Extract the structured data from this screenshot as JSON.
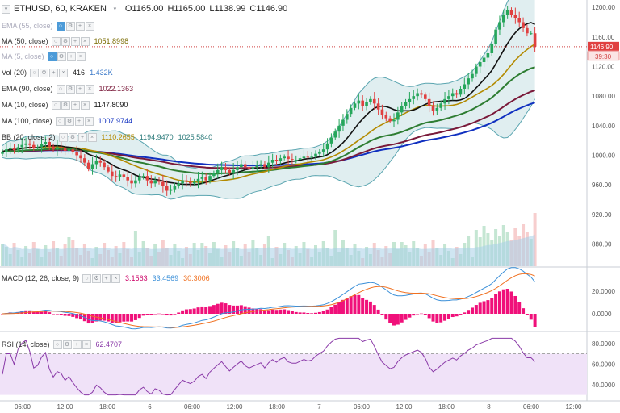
{
  "header": {
    "symbol": "ETHUSD, 60, KRAKEN",
    "open": "O1165.00",
    "high": "H1165.00",
    "low": "L1138.99",
    "close": "C1146.90"
  },
  "indicators": [
    {
      "name": "EMA (55, close)",
      "faded": true,
      "values": []
    },
    {
      "name": "MA (50, close)",
      "faded": false,
      "values": [
        {
          "text": "1051.8998",
          "color": "#7a6b00"
        }
      ]
    },
    {
      "name": "MA (5, close)",
      "faded": true,
      "values": []
    },
    {
      "name": "Vol (20)",
      "faded": false,
      "values": [
        {
          "text": "416",
          "color": "#222222"
        },
        {
          "text": "1.432K",
          "color": "#3a78c8"
        }
      ]
    },
    {
      "name": "EMA (90, close)",
      "faded": false,
      "values": [
        {
          "text": "1022.1363",
          "color": "#7a1a3a"
        }
      ]
    },
    {
      "name": "MA (10, close)",
      "faded": false,
      "values": [
        {
          "text": "1147.8090",
          "color": "#111111"
        }
      ]
    },
    {
      "name": "MA (100, close)",
      "faded": false,
      "values": [
        {
          "text": "1007.9744",
          "color": "#1030c0"
        }
      ]
    },
    {
      "name": "BB (20, close, 2)",
      "faded": false,
      "values": [
        {
          "text": "1110.2655",
          "color": "#b38a00"
        },
        {
          "text": "1194.9470",
          "color": "#2a7a7a"
        },
        {
          "text": "1025.5840",
          "color": "#2a7a7a"
        }
      ]
    }
  ],
  "price_axis": {
    "ticks": [
      "1200.00",
      "1160.00",
      "1120.00",
      "1080.00",
      "1040.00",
      "1000.00",
      "960.00",
      "920.00",
      "880.00"
    ],
    "last_price_label": "1146.90",
    "countdown_label": "39:30"
  },
  "macd_panel": {
    "name": "MACD (12, 26, close, 9)",
    "values": [
      {
        "text": "3.1563",
        "color": "#cc0066"
      },
      {
        "text": "33.4569",
        "color": "#3a8fd8"
      },
      {
        "text": "30.3006",
        "color": "#f07020"
      }
    ],
    "ticks": [
      "20.0000",
      "0.0000"
    ]
  },
  "rsi_panel": {
    "name": "RSI (14, close)",
    "values": [
      {
        "text": "62.4707",
        "color": "#8a3aa8"
      }
    ],
    "ticks": [
      "80.0000",
      "60.0000",
      "40.0000"
    ]
  },
  "time_axis": [
    "06:00",
    "12:00",
    "18:00",
    "6",
    "06:00",
    "12:00",
    "18:00",
    "7",
    "06:00",
    "12:00",
    "18:00",
    "8",
    "06:00",
    "12:00"
  ],
  "colors": {
    "up": "#26a65b",
    "down": "#e04040",
    "bb_fill": "#e0eef0",
    "ma10": "#111111",
    "ma50": "#b38a00",
    "ema55": "#2e7d32",
    "ema90": "#7a1a3a",
    "ma100": "#1030c0",
    "bb_band": "#5aa5b0",
    "macd_line": "#3a8fd8",
    "signal_line": "#f07020",
    "macd_hist": "#f0107a",
    "rsi_line": "#8a3aa8",
    "rsi_fill": "#f0e2f8"
  },
  "chart_data": [
    {
      "type": "candlestick",
      "title": "ETHUSD, 60, KRAKEN",
      "x_labels": [
        "06:00",
        "12:00",
        "18:00",
        "6",
        "06:00",
        "12:00",
        "18:00",
        "7",
        "06:00",
        "12:00",
        "18:00",
        "8",
        "06:00",
        "12:00"
      ],
      "ylim": [
        850,
        1210
      ],
      "closes": [
        1005,
        1008,
        1010,
        1007,
        1011,
        1014,
        1016,
        1014,
        1010,
        1011,
        1015,
        1018,
        1012,
        1008,
        1011,
        1010,
        1006,
        1008,
        1004,
        1000,
        996,
        990,
        982,
        988,
        993,
        990,
        984,
        978,
        972,
        970,
        974,
        970,
        966,
        962,
        966,
        970,
        972,
        966,
        962,
        966,
        964,
        958,
        952,
        954,
        958,
        962,
        966,
        964,
        962,
        964,
        968,
        970,
        966,
        972,
        976,
        980,
        984,
        980,
        976,
        980,
        984,
        988,
        984,
        982,
        984,
        986,
        988,
        984,
        990,
        994,
        992,
        996,
        998,
        995,
        994,
        994,
        996,
        998,
        997,
        998,
        1002,
        1005,
        1008,
        1016,
        1024,
        1032,
        1040,
        1048,
        1056,
        1064,
        1070,
        1074,
        1066,
        1072,
        1076,
        1070,
        1062,
        1054,
        1050,
        1046,
        1048,
        1058,
        1066,
        1072,
        1076,
        1080,
        1084,
        1082,
        1076,
        1066,
        1060,
        1064,
        1070,
        1076,
        1080,
        1084,
        1082,
        1090,
        1096,
        1104,
        1110,
        1120,
        1126,
        1132,
        1138,
        1150,
        1170,
        1180,
        1190,
        1196,
        1190,
        1186,
        1180,
        1172,
        1165,
        1165,
        1146.9
      ],
      "series": [
        {
          "name": "MA (50, close)",
          "last": 1051.8998
        },
        {
          "name": "EMA (90, close)",
          "last": 1022.1363
        },
        {
          "name": "MA (10, close)",
          "last": 1147.809
        },
        {
          "name": "MA (100, close)",
          "last": 1007.9744
        },
        {
          "name": "BB (20, close, 2)",
          "basis": 1110.2655,
          "upper": 1194.947,
          "lower": 1025.584
        }
      ],
      "volume": {
        "name": "Vol (20)",
        "last": 416,
        "ma": "1.432K"
      }
    },
    {
      "type": "line",
      "title": "MACD (12, 26, close, 9)",
      "series": [
        {
          "name": "histogram",
          "last": 3.1563
        },
        {
          "name": "macd",
          "last": 33.4569
        },
        {
          "name": "signal",
          "last": 30.3006
        }
      ],
      "ylim": [
        -15,
        40
      ]
    },
    {
      "type": "line",
      "title": "RSI (14, close)",
      "series": [
        {
          "name": "RSI",
          "last": 62.4707
        }
      ],
      "ylim": [
        25,
        90
      ],
      "bands": [
        70,
        30
      ]
    }
  ]
}
